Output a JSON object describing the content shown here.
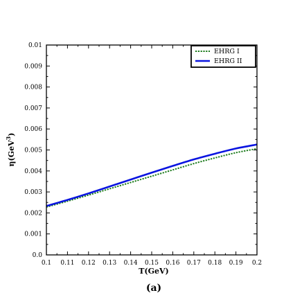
{
  "chart_data": {
    "type": "line",
    "xlabel": "T(GeV)",
    "ylabel_prefix": "η(GeV",
    "ylabel_exp": "3",
    "ylabel_suffix": ")",
    "caption": "(a)",
    "xlim": [
      0.1,
      0.2
    ],
    "ylim": [
      0.0,
      0.01
    ],
    "x_ticks": [
      "0.1",
      "0.11",
      "0.12",
      "0.13",
      "0.14",
      "0.15",
      "0.16",
      "0.17",
      "0.18",
      "0.19",
      "0.2"
    ],
    "y_ticks": [
      "0.0",
      "0.001",
      "0.002",
      "0.003",
      "0.004",
      "0.005",
      "0.006",
      "0.007",
      "0.008",
      "0.009",
      "0.01"
    ],
    "grid": false,
    "legend_position": "top-right",
    "x": [
      0.1,
      0.11,
      0.12,
      0.13,
      0.14,
      0.15,
      0.16,
      0.17,
      0.18,
      0.19,
      0.2
    ],
    "series": [
      {
        "name": "EHRG I",
        "style": "dotted",
        "color": "#1a7a1a",
        "values": [
          0.00228,
          0.00256,
          0.00285,
          0.00315,
          0.00345,
          0.00375,
          0.00405,
          0.00435,
          0.00462,
          0.00487,
          0.00506
        ]
      },
      {
        "name": "EHRG II",
        "style": "solid",
        "color": "#0a14e0",
        "values": [
          0.00233,
          0.00262,
          0.00293,
          0.00326,
          0.00359,
          0.00392,
          0.00424,
          0.00455,
          0.00482,
          0.00507,
          0.00526
        ]
      }
    ]
  }
}
